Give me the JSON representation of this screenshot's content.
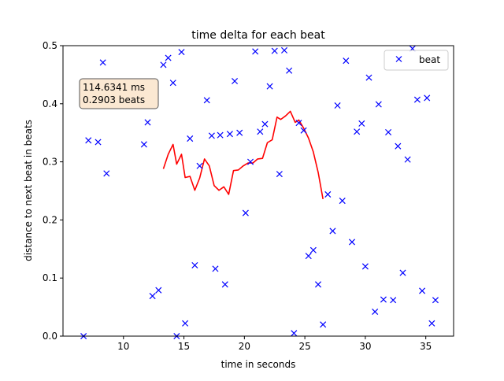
{
  "chart_data": {
    "type": "scatter",
    "title": "time delta for each beat",
    "xlabel": "time in seconds",
    "ylabel": "distance to next beat in beats",
    "xlim": [
      5.0,
      37.3
    ],
    "ylim": [
      0,
      0.5
    ],
    "xticks": [
      10,
      15,
      20,
      25,
      30,
      35
    ],
    "yticks": [
      0.0,
      0.1,
      0.2,
      0.3,
      0.4,
      0.5
    ],
    "legend": {
      "position": "top-right",
      "entries": [
        {
          "label": "beat",
          "marker": "x",
          "color": "#0000ff"
        }
      ]
    },
    "annotation": {
      "line1": "114.6341 ms",
      "line2": "0.2903 beats",
      "position": "top-left"
    },
    "series": [
      {
        "name": "beat",
        "marker": "x",
        "color": "#0000ff",
        "points": [
          [
            6.7,
            0.0
          ],
          [
            7.1,
            0.337
          ],
          [
            7.9,
            0.334
          ],
          [
            8.3,
            0.471
          ],
          [
            8.6,
            0.28
          ],
          [
            11.4,
            0.416
          ],
          [
            11.7,
            0.33
          ],
          [
            12.0,
            0.368
          ],
          [
            12.4,
            0.069
          ],
          [
            12.9,
            0.079
          ],
          [
            13.3,
            0.467
          ],
          [
            13.7,
            0.479
          ],
          [
            14.1,
            0.436
          ],
          [
            14.4,
            0.0
          ],
          [
            14.8,
            0.489
          ],
          [
            15.1,
            0.022
          ],
          [
            15.5,
            0.34
          ],
          [
            15.9,
            0.122
          ],
          [
            16.3,
            0.293
          ],
          [
            16.9,
            0.406
          ],
          [
            17.3,
            0.345
          ],
          [
            17.6,
            0.116
          ],
          [
            18.0,
            0.346
          ],
          [
            18.4,
            0.089
          ],
          [
            18.8,
            0.348
          ],
          [
            19.2,
            0.439
          ],
          [
            19.6,
            0.35
          ],
          [
            20.1,
            0.212
          ],
          [
            20.5,
            0.3
          ],
          [
            20.9,
            0.49
          ],
          [
            21.3,
            0.352
          ],
          [
            21.7,
            0.365
          ],
          [
            22.1,
            0.43
          ],
          [
            22.5,
            0.491
          ],
          [
            22.9,
            0.279
          ],
          [
            23.3,
            0.492
          ],
          [
            23.7,
            0.457
          ],
          [
            24.1,
            0.005
          ],
          [
            24.5,
            0.367
          ],
          [
            24.9,
            0.354
          ],
          [
            25.3,
            0.138
          ],
          [
            25.7,
            0.148
          ],
          [
            26.1,
            0.089
          ],
          [
            26.5,
            0.02
          ],
          [
            26.9,
            0.244
          ],
          [
            27.3,
            0.181
          ],
          [
            27.7,
            0.397
          ],
          [
            28.1,
            0.233
          ],
          [
            28.4,
            0.474
          ],
          [
            28.9,
            0.162
          ],
          [
            29.3,
            0.352
          ],
          [
            29.7,
            0.366
          ],
          [
            30.0,
            0.12
          ],
          [
            30.3,
            0.445
          ],
          [
            30.8,
            0.042
          ],
          [
            31.1,
            0.399
          ],
          [
            31.5,
            0.063
          ],
          [
            31.9,
            0.351
          ],
          [
            32.3,
            0.062
          ],
          [
            32.7,
            0.327
          ],
          [
            33.1,
            0.109
          ],
          [
            33.5,
            0.304
          ],
          [
            33.9,
            0.495
          ],
          [
            34.3,
            0.407
          ],
          [
            34.7,
            0.078
          ],
          [
            35.1,
            0.41
          ],
          [
            35.5,
            0.022
          ],
          [
            35.8,
            0.062
          ]
        ]
      },
      {
        "line_color": "#ff0000",
        "points": [
          [
            13.3,
            0.288
          ],
          [
            13.7,
            0.313
          ],
          [
            14.1,
            0.33
          ],
          [
            14.4,
            0.296
          ],
          [
            14.8,
            0.313
          ],
          [
            15.1,
            0.273
          ],
          [
            15.5,
            0.275
          ],
          [
            15.9,
            0.251
          ],
          [
            16.3,
            0.272
          ],
          [
            16.7,
            0.305
          ],
          [
            17.1,
            0.293
          ],
          [
            17.5,
            0.259
          ],
          [
            17.9,
            0.251
          ],
          [
            18.3,
            0.257
          ],
          [
            18.7,
            0.244
          ],
          [
            19.1,
            0.285
          ],
          [
            19.5,
            0.286
          ],
          [
            19.9,
            0.293
          ],
          [
            20.3,
            0.298
          ],
          [
            20.7,
            0.298
          ],
          [
            21.1,
            0.305
          ],
          [
            21.5,
            0.306
          ],
          [
            21.9,
            0.333
          ],
          [
            22.3,
            0.338
          ],
          [
            22.7,
            0.377
          ],
          [
            23.0,
            0.373
          ],
          [
            23.4,
            0.379
          ],
          [
            23.8,
            0.387
          ],
          [
            24.2,
            0.368
          ],
          [
            24.5,
            0.372
          ],
          [
            24.9,
            0.358
          ],
          [
            25.3,
            0.341
          ],
          [
            25.7,
            0.317
          ],
          [
            26.1,
            0.282
          ],
          [
            26.5,
            0.236
          ]
        ]
      }
    ]
  }
}
